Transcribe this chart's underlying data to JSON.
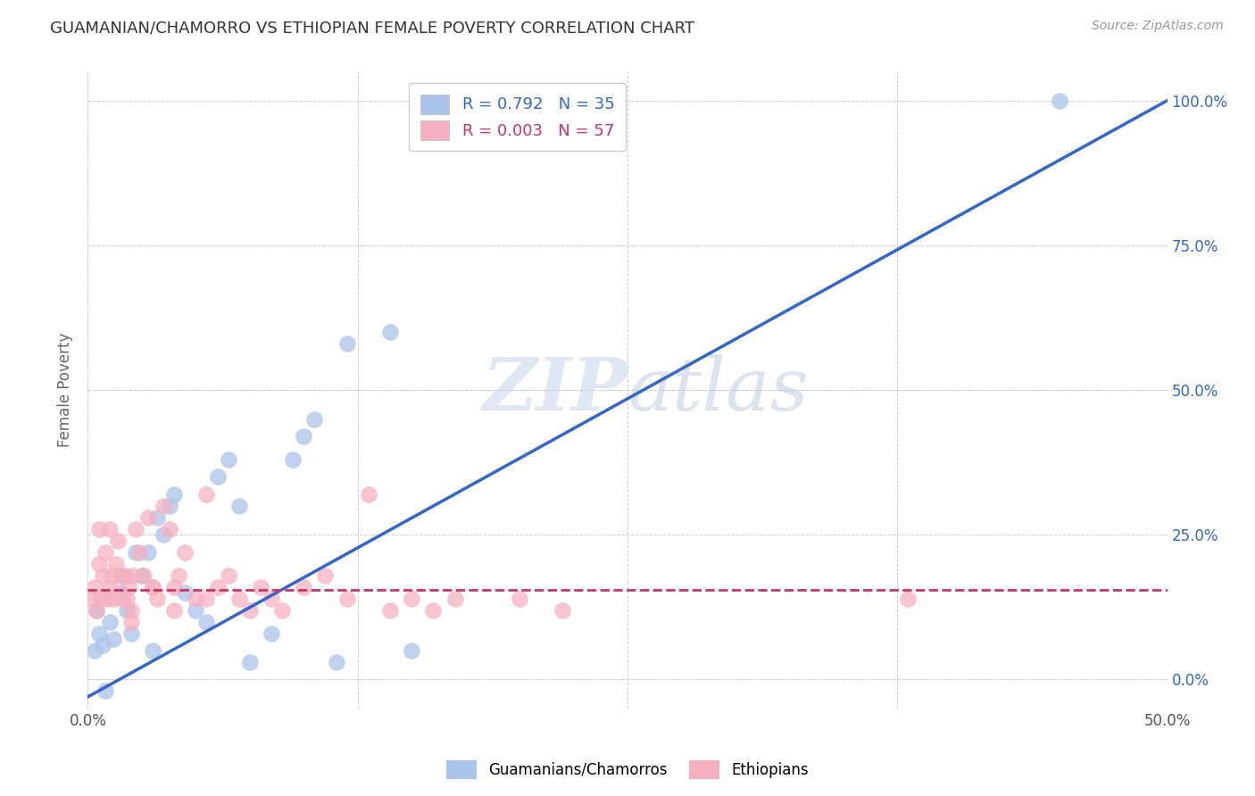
{
  "title": "GUAMANIAN/CHAMORRO VS ETHIOPIAN FEMALE POVERTY CORRELATION CHART",
  "source": "Source: ZipAtlas.com",
  "ylabel": "Female Poverty",
  "guam_R": "0.792",
  "guam_N": "35",
  "eth_R": "0.003",
  "eth_N": "57",
  "guam_color": "#a8c4ea",
  "eth_color": "#f5b0c0",
  "guam_line_color": "#3366cc",
  "eth_line_color": "#cc3366",
  "watermark_color": "#d0dcf0",
  "legend_label_guam": "Guamanians/Chamorros",
  "legend_label_eth": "Ethiopians",
  "xmin": 0.0,
  "xmax": 50.0,
  "ymin": -5.0,
  "ymax": 105.0,
  "x_ticks": [
    0.0,
    12.5,
    25.0,
    37.5,
    50.0
  ],
  "y_ticks": [
    0.0,
    25.0,
    50.0,
    75.0,
    100.0
  ],
  "guam_line_x0": 0.0,
  "guam_line_y0": -3.0,
  "guam_line_x1": 50.0,
  "guam_line_y1": 100.0,
  "eth_line_x0": 0.0,
  "eth_line_y0": 15.5,
  "eth_line_x1": 50.0,
  "eth_line_y1": 15.5,
  "guam_x": [
    0.3,
    0.5,
    0.7,
    0.8,
    1.0,
    1.2,
    1.5,
    1.6,
    1.8,
    2.0,
    2.2,
    2.5,
    2.8,
    3.0,
    3.2,
    3.5,
    3.8,
    4.0,
    4.5,
    5.0,
    5.5,
    6.0,
    6.5,
    7.5,
    8.5,
    9.5,
    10.0,
    11.5,
    14.0,
    15.0,
    7.0,
    10.5,
    12.0,
    45.0,
    0.4
  ],
  "guam_y": [
    5.0,
    8.0,
    6.0,
    -2.0,
    10.0,
    7.0,
    15.0,
    18.0,
    12.0,
    8.0,
    22.0,
    18.0,
    22.0,
    5.0,
    28.0,
    25.0,
    30.0,
    32.0,
    15.0,
    12.0,
    10.0,
    35.0,
    38.0,
    3.0,
    8.0,
    38.0,
    42.0,
    3.0,
    60.0,
    5.0,
    30.0,
    45.0,
    58.0,
    100.0,
    12.0
  ],
  "eth_x": [
    0.2,
    0.3,
    0.4,
    0.5,
    0.6,
    0.7,
    0.8,
    0.9,
    1.0,
    1.1,
    1.2,
    1.3,
    1.4,
    1.5,
    1.6,
    1.7,
    1.8,
    1.9,
    2.0,
    2.1,
    2.2,
    2.4,
    2.6,
    2.8,
    3.0,
    3.2,
    3.5,
    3.8,
    4.0,
    4.2,
    4.5,
    5.0,
    5.5,
    6.0,
    6.5,
    7.0,
    7.5,
    8.0,
    8.5,
    9.0,
    10.0,
    11.0,
    12.0,
    13.0,
    14.0,
    15.0,
    16.0,
    17.0,
    20.0,
    22.0,
    1.0,
    2.0,
    3.0,
    4.0,
    5.5,
    38.0,
    0.5
  ],
  "eth_y": [
    14.0,
    16.0,
    12.0,
    20.0,
    14.0,
    18.0,
    22.0,
    14.0,
    16.0,
    18.0,
    14.0,
    20.0,
    24.0,
    18.0,
    14.0,
    18.0,
    14.0,
    16.0,
    12.0,
    18.0,
    26.0,
    22.0,
    18.0,
    28.0,
    16.0,
    14.0,
    30.0,
    26.0,
    16.0,
    18.0,
    22.0,
    14.0,
    32.0,
    16.0,
    18.0,
    14.0,
    12.0,
    16.0,
    14.0,
    12.0,
    16.0,
    18.0,
    14.0,
    32.0,
    12.0,
    14.0,
    12.0,
    14.0,
    14.0,
    12.0,
    26.0,
    10.0,
    16.0,
    12.0,
    14.0,
    14.0,
    26.0
  ]
}
